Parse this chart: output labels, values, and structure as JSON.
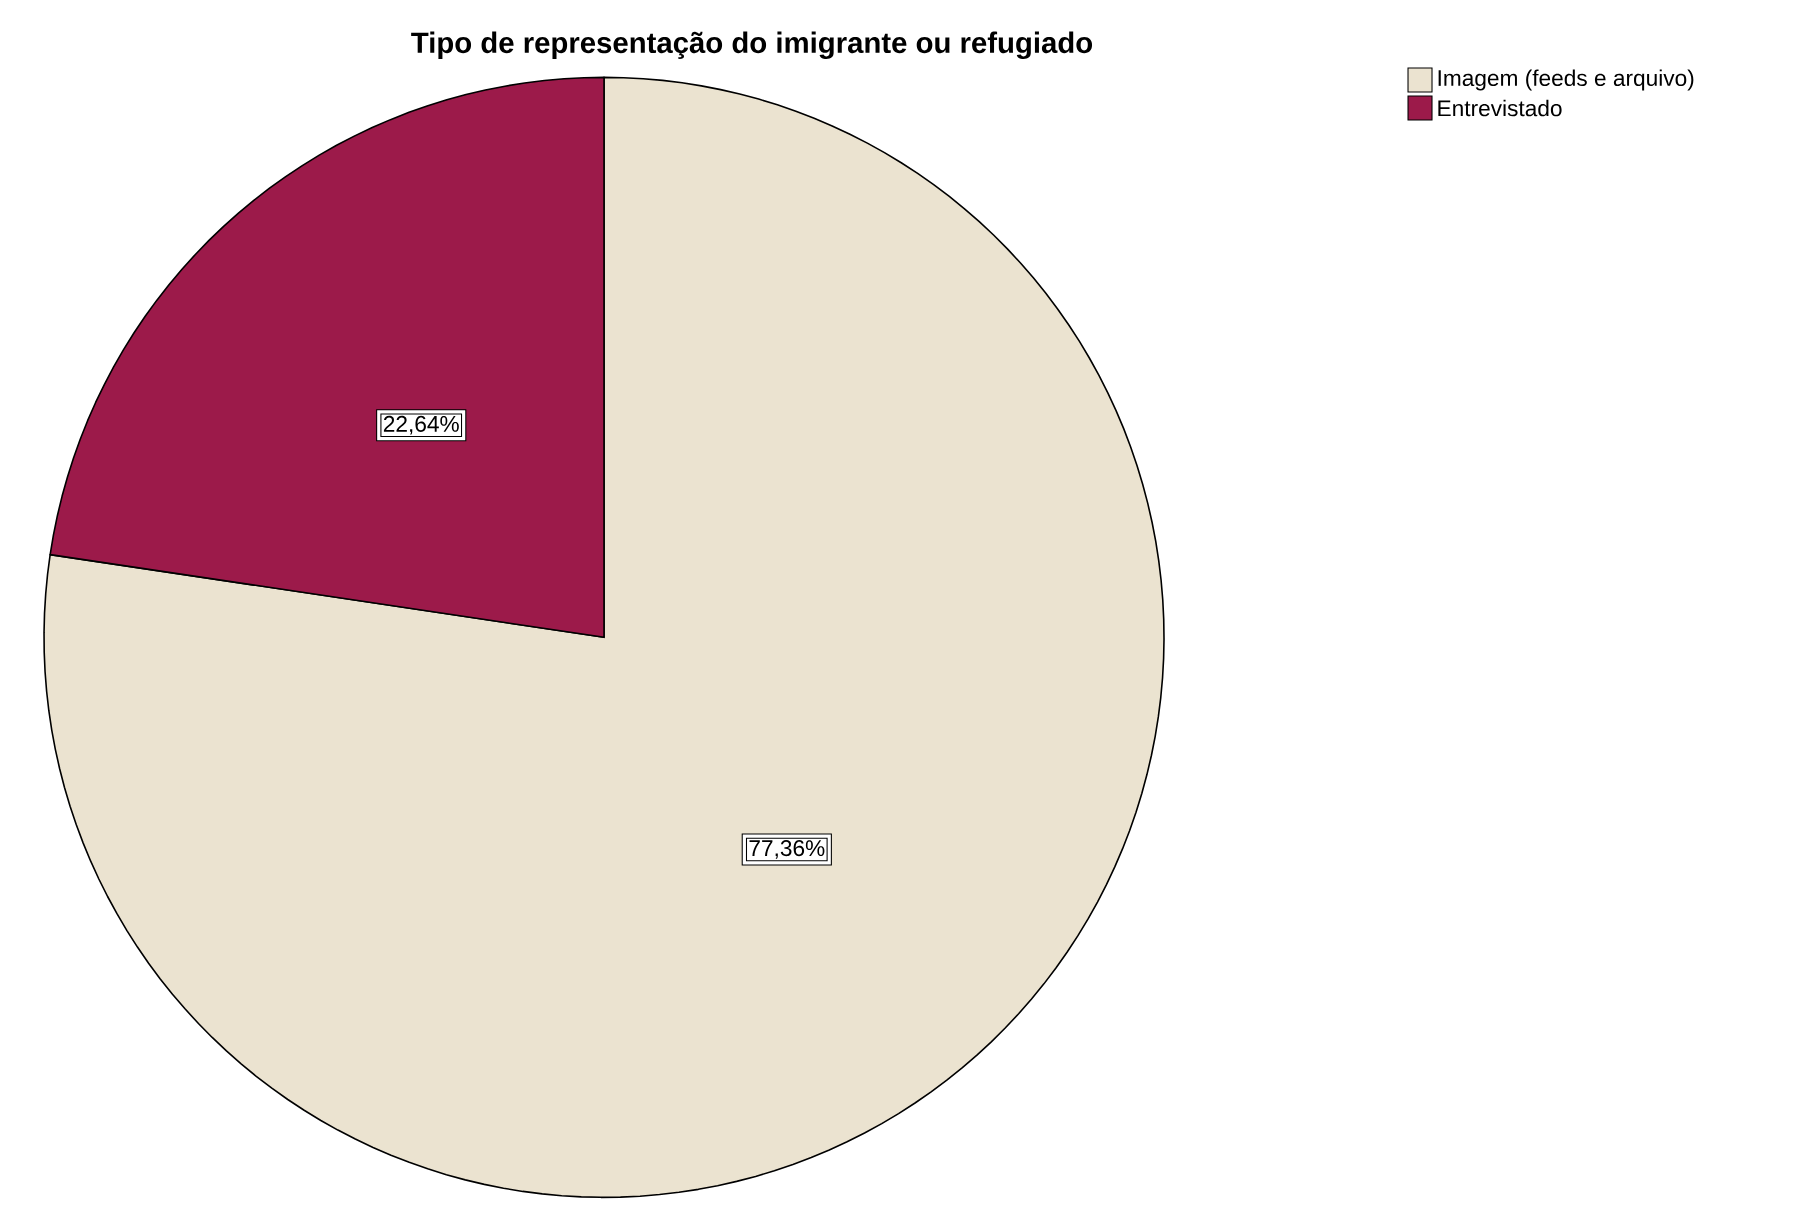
{
  "chart_data": {
    "type": "pie",
    "title": "Tipo de representação do imigrante ou refugiado",
    "categories": [
      "Imagem (feeds e arquivo)",
      "Entrevistado"
    ],
    "values": [
      77.36,
      22.64
    ],
    "colors": [
      "#ebe3d0",
      "#9c1a4a"
    ],
    "value_labels": [
      "77,36%",
      "22,64%"
    ],
    "legend": "top right"
  }
}
